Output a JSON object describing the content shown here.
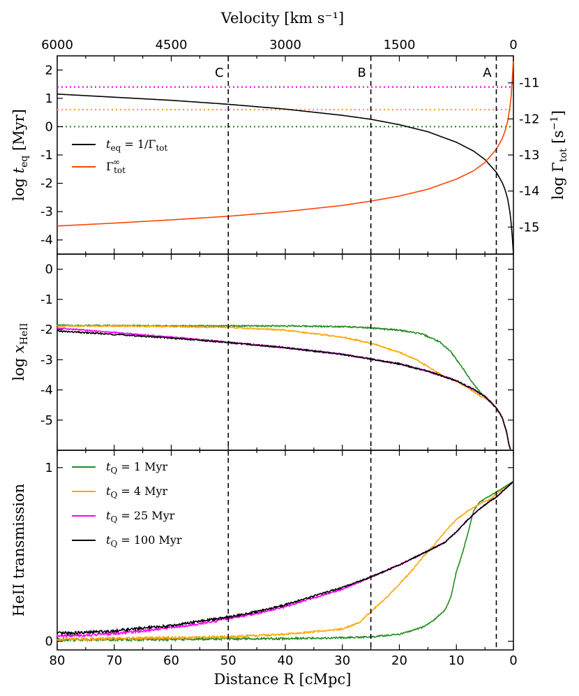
{
  "figure": {
    "top_axis": {
      "title": "Velocity [km s⁻¹]",
      "ticks": [
        {
          "value": 6000,
          "label": "6000"
        },
        {
          "value": 4500,
          "label": "4500"
        },
        {
          "value": 3000,
          "label": "3000"
        },
        {
          "value": 1500,
          "label": "1500"
        },
        {
          "value": 0,
          "label": "0"
        }
      ]
    },
    "bottom_axis": {
      "title": "Distance R [cMpc]",
      "range": [
        80,
        0
      ],
      "ticks": [
        80,
        70,
        60,
        50,
        40,
        30,
        20,
        10,
        0
      ]
    },
    "vertical_markers": [
      {
        "label": "C",
        "x": 50
      },
      {
        "label": "B",
        "x": 25
      },
      {
        "label": "A",
        "x": 3
      }
    ],
    "colors": {
      "tQ1": "#228b22",
      "tQ4": "#ffa500",
      "tQ25": "#ff00ff",
      "tQ100": "#000000",
      "gamma": "#ff4500",
      "teq": "#000000"
    }
  },
  "chart_data": [
    {
      "panel": "top",
      "type": "line",
      "ylabel": "log t_eq [Myr]",
      "ylim": [
        -4.5,
        2.5
      ],
      "yticks": [
        2,
        1,
        0,
        -1,
        -2,
        -3,
        -4
      ],
      "right_ylabel": "log Γ_tot [s⁻¹]",
      "right_ylim": [
        -15.75,
        -10.25
      ],
      "right_yticks": [
        -11,
        -12,
        -13,
        -14,
        -15
      ],
      "hlines": [
        {
          "y": 1.4,
          "color": "tQ25"
        },
        {
          "y": 0.6,
          "color": "tQ4"
        },
        {
          "y": 0.0,
          "color": "tQ1"
        }
      ],
      "legend": [
        {
          "key": "teq",
          "label": "t_eq = 1/Γ_tot"
        },
        {
          "key": "gamma",
          "label": "Γ_tot^∞"
        }
      ],
      "series": [
        {
          "key": "teq",
          "name": "t_eq = 1/Γ_tot",
          "axis": "left",
          "x": [
            80,
            70,
            60,
            50,
            40,
            30,
            25,
            20,
            15,
            10,
            7,
            5,
            3,
            2,
            1.5,
            1,
            0.5,
            0.2,
            0
          ],
          "y": [
            1.15,
            1.04,
            0.93,
            0.79,
            0.62,
            0.4,
            0.26,
            0.07,
            -0.18,
            -0.55,
            -0.86,
            -1.16,
            -1.61,
            -1.96,
            -2.2,
            -2.56,
            -3.16,
            -3.9,
            -4.5
          ]
        },
        {
          "key": "gamma",
          "name": "Γ_tot^∞",
          "axis": "right",
          "x": [
            80,
            70,
            60,
            50,
            40,
            30,
            25,
            20,
            15,
            10,
            7,
            5,
            3,
            2,
            1.5,
            1,
            0.5,
            0.3,
            0.1,
            0
          ],
          "y": [
            -14.97,
            -14.89,
            -14.8,
            -14.7,
            -14.57,
            -14.4,
            -14.28,
            -14.14,
            -13.95,
            -13.67,
            -13.44,
            -13.21,
            -12.84,
            -12.56,
            -12.35,
            -12.06,
            -11.55,
            -11.2,
            -10.6,
            -10.3
          ]
        }
      ]
    },
    {
      "panel": "middle",
      "type": "line",
      "ylabel": "log x_HeII",
      "ylim": [
        -6,
        0.5
      ],
      "yticks": [
        0,
        -1,
        -2,
        -3,
        -4,
        -5
      ],
      "series": [
        {
          "key": "tQ1",
          "name": "t_Q = 1 Myr",
          "x": [
            80,
            70,
            60,
            50,
            40,
            30,
            25,
            20,
            16,
            13,
            11,
            9,
            7,
            5.5,
            4,
            3,
            2,
            1.2,
            0.8,
            0.5
          ],
          "y": [
            -1.86,
            -1.87,
            -1.88,
            -1.88,
            -1.88,
            -1.9,
            -1.95,
            -2.02,
            -2.15,
            -2.4,
            -2.73,
            -3.25,
            -3.8,
            -4.15,
            -4.38,
            -4.6,
            -4.9,
            -5.4,
            -5.8,
            -6.0
          ]
        },
        {
          "key": "tQ4",
          "name": "t_Q = 4 Myr",
          "x": [
            80,
            70,
            60,
            50,
            40,
            30,
            25,
            20,
            17,
            14,
            12,
            10,
            8,
            6,
            4,
            3,
            2,
            1.2,
            0.8,
            0.5
          ],
          "y": [
            -1.88,
            -1.88,
            -1.9,
            -1.93,
            -2.02,
            -2.25,
            -2.45,
            -2.75,
            -3.0,
            -3.35,
            -3.55,
            -3.72,
            -3.92,
            -4.18,
            -4.38,
            -4.6,
            -4.9,
            -5.4,
            -5.8,
            -6.0
          ]
        },
        {
          "key": "tQ25",
          "name": "t_Q = 25 Myr",
          "x": [
            80,
            70,
            60,
            50,
            40,
            30,
            25,
            20,
            15,
            10,
            7,
            5,
            3,
            2,
            1.2,
            0.8,
            0.5
          ],
          "y": [
            -1.95,
            -2.1,
            -2.25,
            -2.42,
            -2.6,
            -2.82,
            -2.98,
            -3.14,
            -3.38,
            -3.7,
            -3.98,
            -4.22,
            -4.6,
            -4.9,
            -5.4,
            -5.8,
            -6.0
          ]
        },
        {
          "key": "tQ100",
          "name": "t_Q = 100 Myr",
          "x": [
            80,
            70,
            60,
            50,
            40,
            30,
            25,
            20,
            15,
            10,
            7,
            5,
            3,
            2,
            1.2,
            0.8,
            0.5
          ],
          "y": [
            -2.05,
            -2.16,
            -2.28,
            -2.43,
            -2.6,
            -2.82,
            -2.98,
            -3.14,
            -3.38,
            -3.7,
            -3.98,
            -4.22,
            -4.6,
            -4.9,
            -5.4,
            -5.8,
            -6.0
          ]
        }
      ]
    },
    {
      "panel": "bottom",
      "type": "line",
      "ylabel": "HeII transmission",
      "ylim": [
        -0.05,
        1.1
      ],
      "yticks": [
        0,
        1
      ],
      "legend": [
        {
          "key": "tQ1",
          "label": "t_Q = 1 Myr"
        },
        {
          "key": "tQ4",
          "label": "t_Q = 4 Myr"
        },
        {
          "key": "tQ25",
          "label": "t_Q = 25 Myr"
        },
        {
          "key": "tQ100",
          "label": "t_Q = 100 Myr"
        }
      ],
      "series": [
        {
          "key": "tQ1",
          "name": "t_Q = 1 Myr",
          "x": [
            80,
            70,
            60,
            50,
            40,
            30,
            25,
            20,
            16,
            14,
            12,
            11,
            10,
            9,
            8,
            7,
            6,
            5,
            4,
            3,
            2,
            1,
            0
          ],
          "y": [
            0.01,
            0.01,
            0.01,
            0.015,
            0.015,
            0.02,
            0.025,
            0.04,
            0.08,
            0.12,
            0.18,
            0.25,
            0.4,
            0.5,
            0.62,
            0.75,
            0.8,
            0.82,
            0.84,
            0.86,
            0.88,
            0.9,
            0.92
          ]
        },
        {
          "key": "tQ4",
          "name": "t_Q = 4 Myr",
          "x": [
            80,
            70,
            60,
            50,
            40,
            30,
            27,
            25,
            22,
            20,
            18,
            16,
            14,
            12,
            10,
            8,
            6,
            4,
            3,
            2,
            1,
            0
          ],
          "y": [
            0.01,
            0.015,
            0.02,
            0.025,
            0.04,
            0.07,
            0.11,
            0.17,
            0.26,
            0.33,
            0.4,
            0.48,
            0.55,
            0.63,
            0.7,
            0.75,
            0.79,
            0.82,
            0.85,
            0.87,
            0.89,
            0.92
          ]
        },
        {
          "key": "tQ25",
          "name": "t_Q = 25 Myr",
          "x": [
            80,
            75,
            70,
            65,
            60,
            55,
            50,
            45,
            40,
            35,
            30,
            25,
            20,
            15,
            12,
            10,
            8,
            6,
            4,
            3,
            2,
            1,
            0
          ],
          "y": [
            0.03,
            0.035,
            0.045,
            0.06,
            0.08,
            0.1,
            0.13,
            0.16,
            0.2,
            0.25,
            0.3,
            0.37,
            0.44,
            0.52,
            0.57,
            0.63,
            0.7,
            0.76,
            0.81,
            0.83,
            0.86,
            0.89,
            0.92
          ]
        },
        {
          "key": "tQ100",
          "name": "t_Q = 100 Myr",
          "x": [
            80,
            75,
            70,
            65,
            60,
            55,
            50,
            45,
            40,
            35,
            30,
            25,
            20,
            15,
            12,
            10,
            8,
            6,
            4,
            3,
            2,
            1,
            0
          ],
          "y": [
            0.045,
            0.05,
            0.06,
            0.075,
            0.09,
            0.115,
            0.14,
            0.17,
            0.21,
            0.26,
            0.31,
            0.37,
            0.44,
            0.52,
            0.57,
            0.63,
            0.7,
            0.76,
            0.81,
            0.83,
            0.86,
            0.89,
            0.92
          ]
        }
      ]
    }
  ]
}
